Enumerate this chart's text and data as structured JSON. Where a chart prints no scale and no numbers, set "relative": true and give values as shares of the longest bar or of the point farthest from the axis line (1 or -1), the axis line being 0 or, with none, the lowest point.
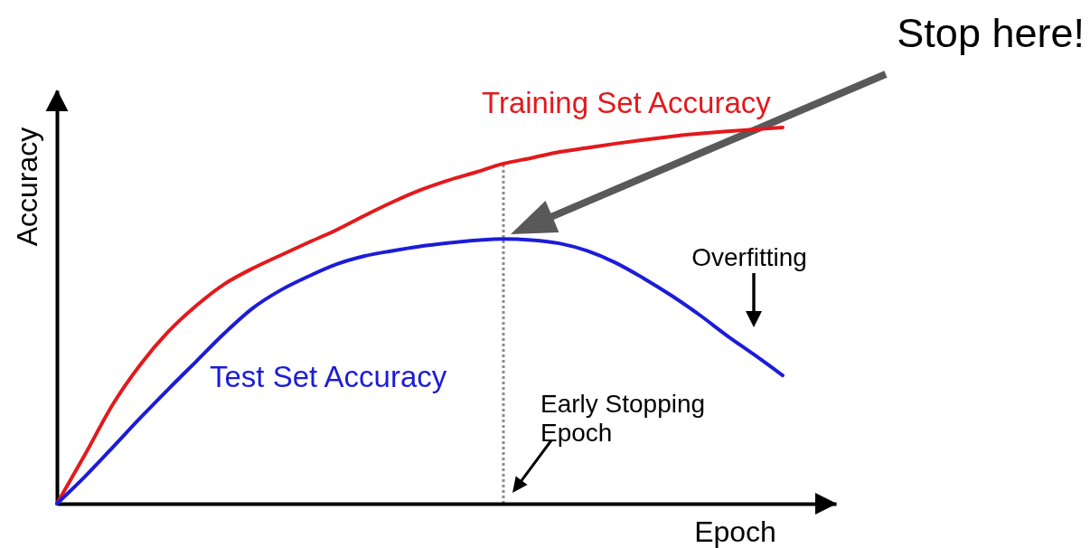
{
  "chart_data": {
    "type": "line",
    "xlabel": "Epoch",
    "ylabel": "Accuracy",
    "relative": true,
    "categories": [
      null,
      null,
      null,
      null,
      null,
      null,
      null,
      null,
      null,
      null,
      null,
      null,
      null,
      null,
      null,
      null,
      null,
      null,
      null,
      null,
      null,
      null,
      null,
      null,
      null,
      null,
      null
    ],
    "series": [
      {
        "name": "Training Set Accuracy",
        "color": "#e3191c",
        "values": [
          0,
          0.13,
          0.264,
          0.371,
          0.458,
          0.527,
          0.584,
          0.625,
          0.66,
          0.694,
          0.727,
          0.765,
          0.801,
          0.833,
          0.859,
          0.881,
          0.904,
          0.919,
          0.935,
          0.946,
          0.957,
          0.967,
          0.976,
          0.984,
          0.99,
          0.995,
          1
        ]
      },
      {
        "name": "Test Set Accuracy",
        "color": "#1c1cd8",
        "values": [
          0,
          0.072,
          0.15,
          0.229,
          0.305,
          0.379,
          0.453,
          0.519,
          0.567,
          0.604,
          0.636,
          0.658,
          0.672,
          0.684,
          0.693,
          0.7,
          0.704,
          0.701,
          0.692,
          0.672,
          0.641,
          0.6,
          0.554,
          0.503,
          0.447,
          0.395,
          0.341
        ]
      }
    ],
    "annotations": [
      "Stop here!",
      "Overfitting",
      "Early Stopping Epoch"
    ]
  }
}
